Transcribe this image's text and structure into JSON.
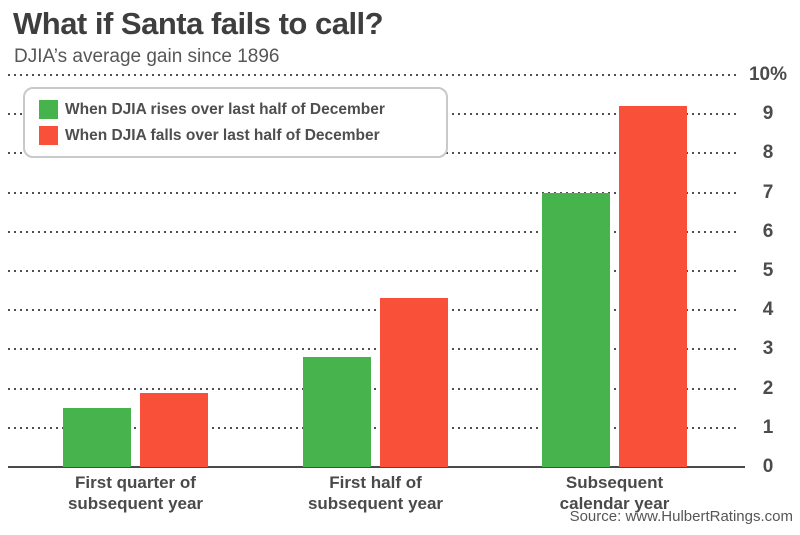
{
  "chart_data": {
    "type": "bar",
    "title": "What if Santa fails to call?",
    "subtitle": "DJIA’s average gain since 1896",
    "categories": [
      {
        "line1": "First quarter of",
        "line2": "subsequent year"
      },
      {
        "line1": "First half of",
        "line2": "subsequent year"
      },
      {
        "line1": "Subsequent",
        "line2": "calendar year"
      }
    ],
    "series": [
      {
        "name": "When DJIA rises over last half of December",
        "color": "#47b34d",
        "values": [
          1.5,
          2.8,
          7.0
        ]
      },
      {
        "name": "When DJIA falls over last half of December",
        "color": "#f9503a",
        "values": [
          1.9,
          4.3,
          9.2
        ]
      }
    ],
    "ylabel": "",
    "xlabel": "",
    "ylim": [
      0,
      10
    ],
    "yticks": [
      {
        "value": 10,
        "label": "10%"
      },
      {
        "value": 9,
        "label": "9"
      },
      {
        "value": 8,
        "label": "8"
      },
      {
        "value": 7,
        "label": "7"
      },
      {
        "value": 6,
        "label": "6"
      },
      {
        "value": 5,
        "label": "5"
      },
      {
        "value": 4,
        "label": "4"
      },
      {
        "value": 3,
        "label": "3"
      },
      {
        "value": 2,
        "label": "2"
      },
      {
        "value": 1,
        "label": "1"
      },
      {
        "value": 0,
        "label": "0"
      }
    ],
    "grid": "horizontal-dotted",
    "legend_position": "top-left",
    "source": "Source: www.HulbertRatings.com"
  }
}
